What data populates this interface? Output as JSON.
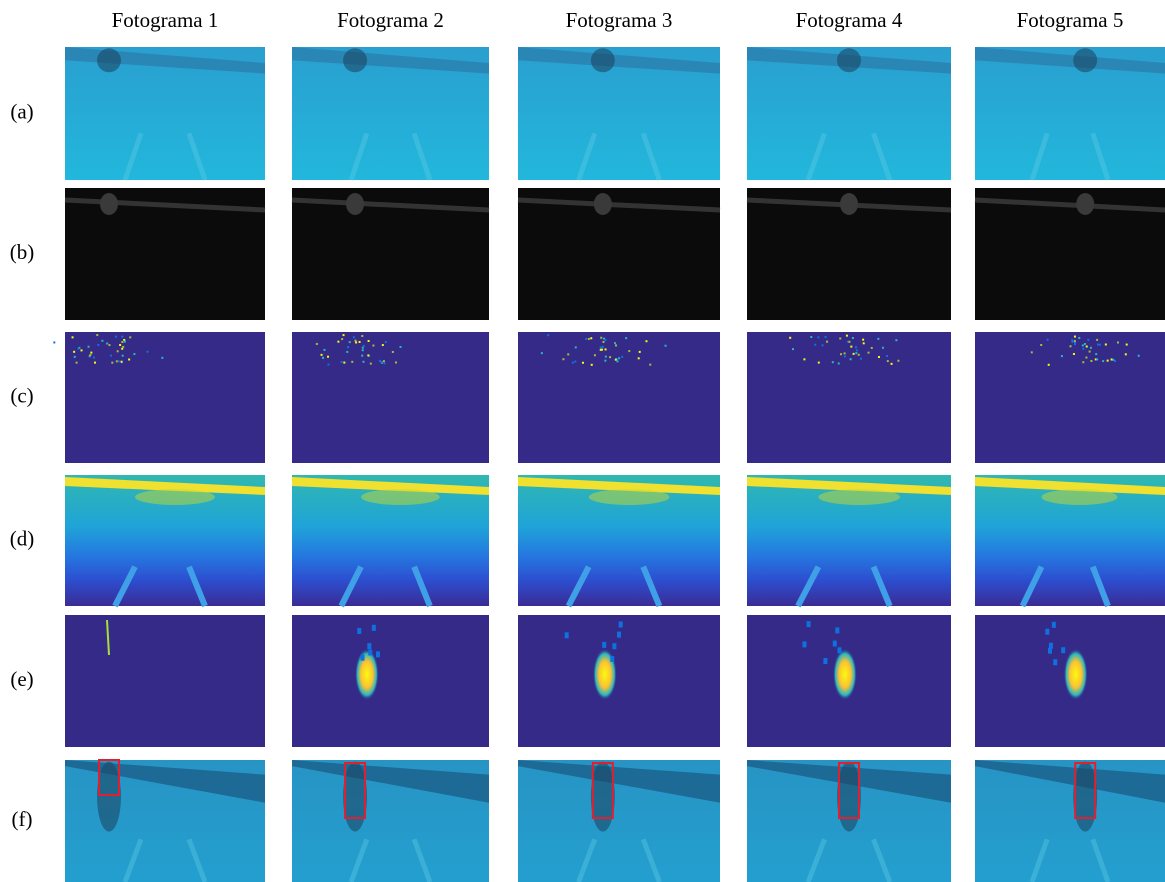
{
  "columns": [
    "Fotograma 1",
    "Fotograma 2",
    "Fotograma 3",
    "Fotograma 4",
    "Fotograma 5"
  ],
  "rows": [
    "(a)",
    "(b)",
    "(c)",
    "(d)",
    "(e)",
    "(f)"
  ]
}
